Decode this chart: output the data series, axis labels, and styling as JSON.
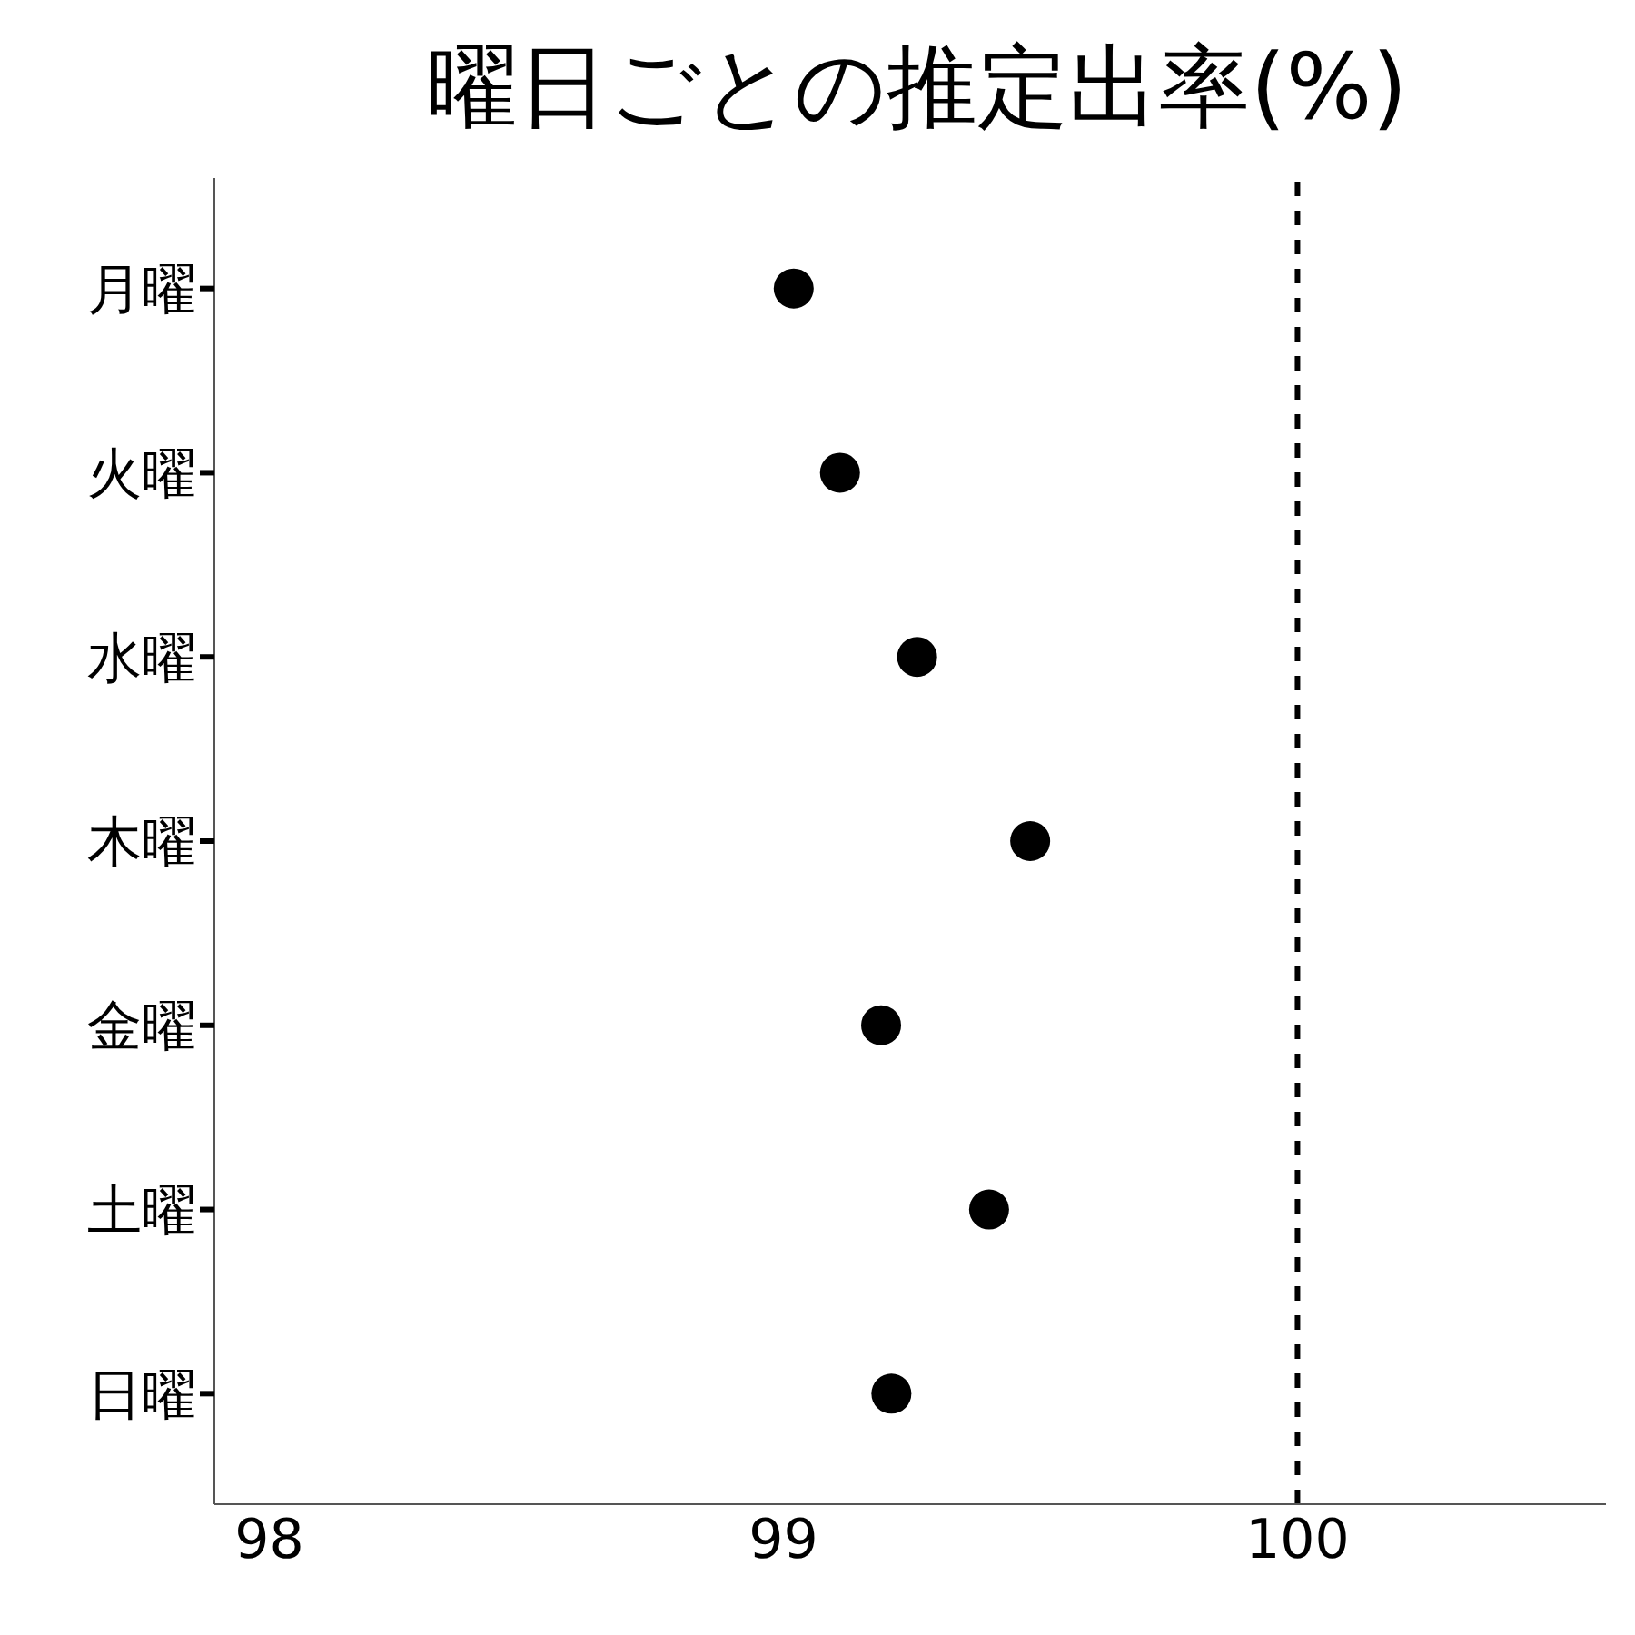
{
  "chart_data": {
    "type": "scatter",
    "title": "曜日ごとの推定出率(%)",
    "orientation": "horizontal",
    "categories": [
      "月曜",
      "火曜",
      "水曜",
      "木曜",
      "金曜",
      "土曜",
      "日曜"
    ],
    "values": [
      99.02,
      99.11,
      99.26,
      99.48,
      99.19,
      99.4,
      99.21
    ],
    "color": "#000000",
    "marker": "circle",
    "grid": false,
    "legend": false,
    "xlim": [
      97.893,
      100.6
    ],
    "xticks": [
      98,
      99,
      100
    ],
    "ref_lines": [
      {
        "axis": "x",
        "value": 100,
        "color": "#000000",
        "line_style": "dashed"
      }
    ]
  }
}
